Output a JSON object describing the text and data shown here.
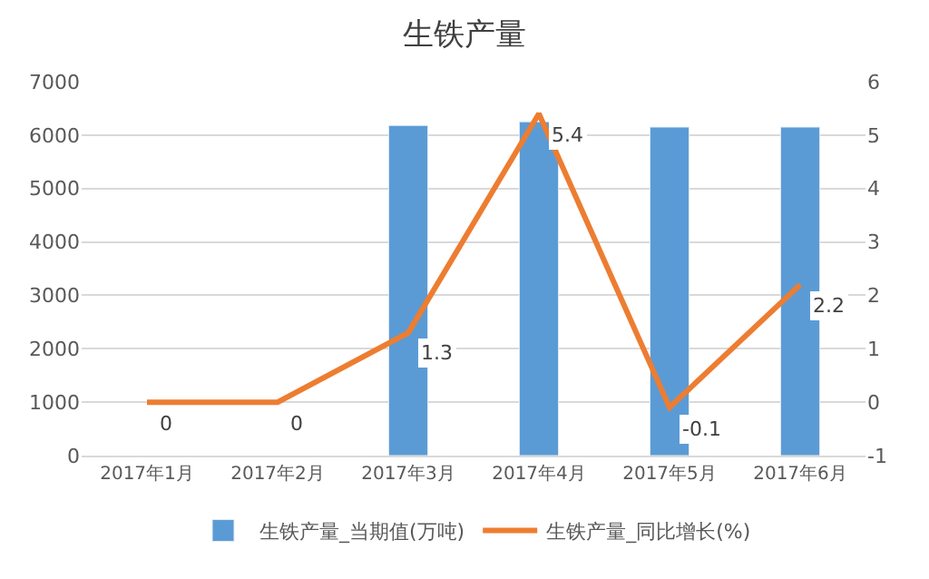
{
  "chart_data": {
    "type": "bar",
    "title": "生铁产量",
    "categories": [
      "2017年1月",
      "2017年2月",
      "2017年3月",
      "2017年4月",
      "2017年5月",
      "2017年6月"
    ],
    "series": [
      {
        "name": "生铁产量_当期值(万吨)",
        "color": "#5b9bd5",
        "values": [
          null,
          null,
          6180,
          6250,
          6150,
          6150
        ]
      },
      {
        "name": "生铁产量_同比增长(%)",
        "type": "line",
        "axis": "y2",
        "color": "#ed7d31",
        "values": [
          0,
          0,
          1.3,
          5.4,
          -0.1,
          2.2
        ],
        "value_labels": [
          "0",
          "0",
          "1.3",
          "5.4",
          "-0.1",
          "2.2"
        ]
      }
    ],
    "ylim": [
      0,
      7000
    ],
    "yticks": [
      0,
      1000,
      2000,
      3000,
      4000,
      5000,
      6000,
      7000
    ],
    "y2lim": [
      -1,
      6
    ],
    "y2ticks": [
      -1,
      0,
      1,
      2,
      3,
      4,
      5,
      6
    ],
    "grid": "y",
    "legend": "bottom",
    "marker": "none",
    "line_style": "solid"
  }
}
